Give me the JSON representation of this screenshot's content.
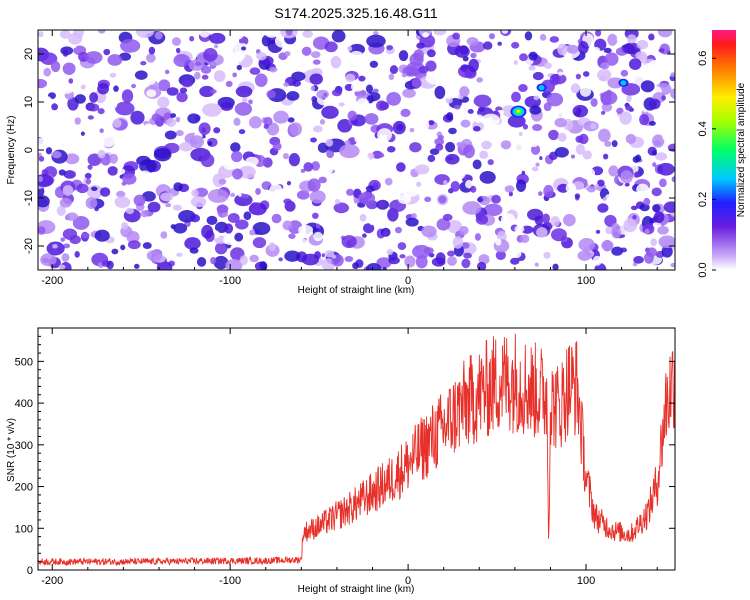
{
  "title": "S174.2025.325.16.48.G11",
  "colors": {
    "snr_line": "#e8302a",
    "axis": "#000000"
  },
  "chart_data": [
    {
      "type": "heatmap",
      "xlabel": "Height of straight line (km)",
      "ylabel": "Frequency (Hz)",
      "xlim": [
        -208,
        150
      ],
      "ylim": [
        -25,
        25
      ],
      "xticks": [
        -200,
        -100,
        0,
        100
      ],
      "yticks": [
        -20,
        -10,
        0,
        10,
        20
      ],
      "colorbar": {
        "label": "Normalized spectral amplitude",
        "range": [
          0,
          0.68
        ],
        "ticks": [
          "0.0",
          "0.2",
          "0.4",
          "0.6"
        ]
      },
      "peak": {
        "x": 62,
        "y": 8,
        "value": 0.45
      },
      "peaks_minor": [
        {
          "x": 75,
          "y": 13,
          "value": 0.2
        },
        {
          "x": 121,
          "y": 14,
          "value": 0.1
        }
      ]
    },
    {
      "type": "line",
      "xlabel": "Height of straight line (km)",
      "ylabel": "SNR (10 * v/v)",
      "xlim": [
        -208,
        150
      ],
      "ylim": [
        0,
        580
      ],
      "xticks": [
        -200,
        -100,
        0,
        100
      ],
      "yticks": [
        0,
        100,
        200,
        300,
        400,
        500
      ],
      "series": [
        {
          "x": [
            -208,
            -150,
            -100,
            -80,
            -60,
            -59,
            -50,
            -40,
            -30,
            -20,
            -10,
            0,
            10,
            20,
            30,
            40,
            50,
            60,
            70,
            78,
            79,
            80,
            85,
            90,
            95,
            100,
            105,
            110,
            115,
            120,
            125,
            130,
            135,
            140,
            145,
            150
          ],
          "y": [
            20,
            20,
            22,
            22,
            25,
            90,
            105,
            130,
            155,
            185,
            215,
            255,
            300,
            340,
            390,
            420,
            450,
            455,
            430,
            420,
            60,
            400,
            390,
            440,
            440,
            220,
            130,
            110,
            95,
            90,
            85,
            110,
            140,
            210,
            400,
            470
          ]
        }
      ]
    }
  ]
}
